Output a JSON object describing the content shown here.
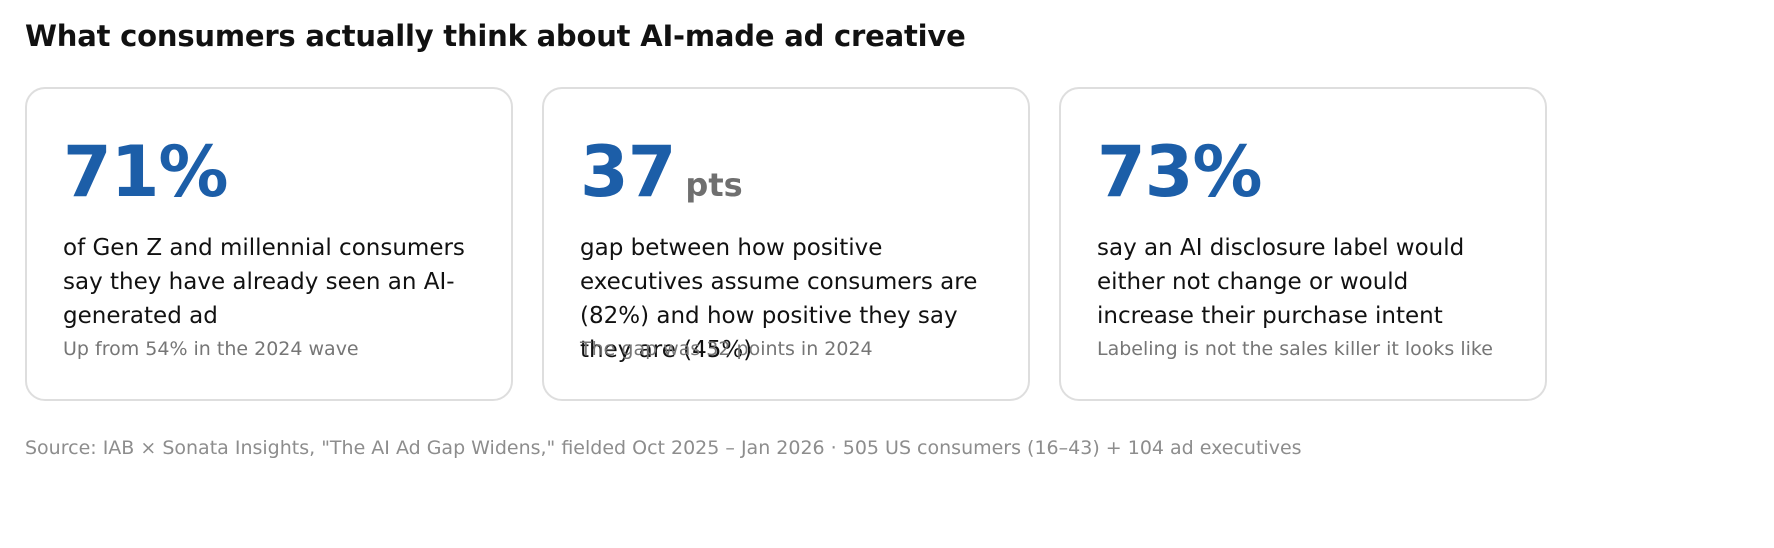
{
  "title": "What consumers actually think about AI-made ad creative",
  "cards": [
    {
      "value": "71%",
      "unit": "",
      "description": "of Gen Z and millennial consumers say they have already seen an AI-generated ad",
      "note": "Up from 54% in the 2024 wave"
    },
    {
      "value": "37",
      "unit": "pts",
      "description": "gap between how positive executives assume consumers are (82%) and how positive they say they are (45%)",
      "note": "The gap was 32 points in 2024"
    },
    {
      "value": "73%",
      "unit": "",
      "description": "say an AI disclosure label would either not change or would increase their purchase intent",
      "note": "Labeling is not the sales killer it looks like"
    }
  ],
  "source": "Source: IAB × Sonata Insights, \"The AI Ad Gap Widens,\" fielded Oct 2025 – Jan 2026 · 505 US consumers (16–43) + 104 ad executives",
  "colors": {
    "accent": "#1c5ea8",
    "unit": "#6f6f6f",
    "note": "#767676",
    "source": "#8d8d8d",
    "border": "#dedede"
  }
}
